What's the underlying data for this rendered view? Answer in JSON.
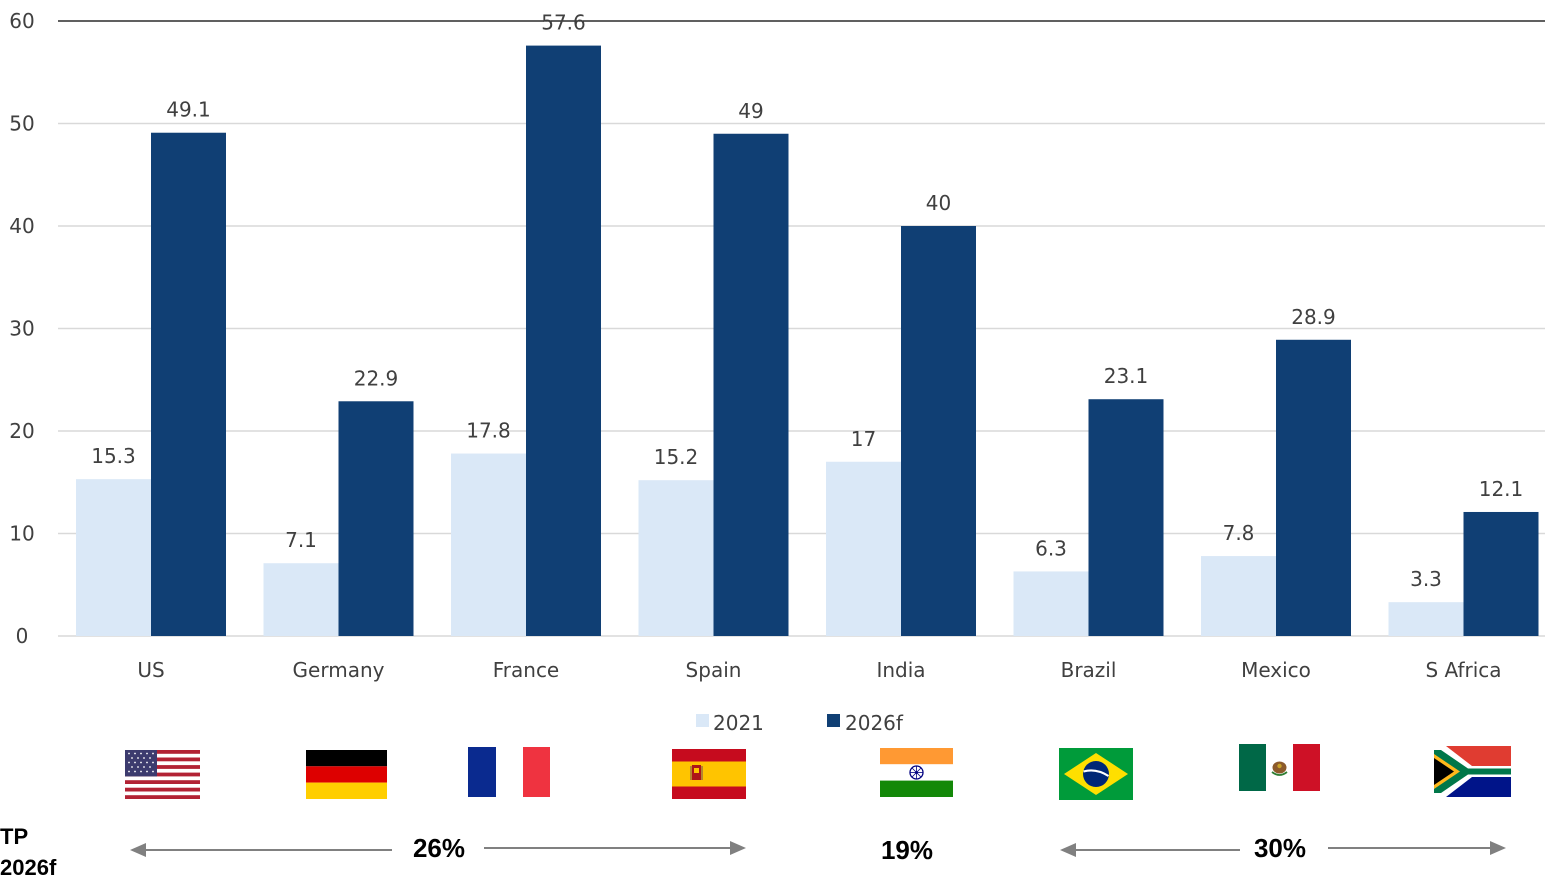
{
  "chart_data": {
    "type": "bar",
    "title": "",
    "xlabel": "",
    "ylabel": "",
    "ylim": [
      0,
      60
    ],
    "yticks": [
      0,
      10,
      20,
      30,
      40,
      50,
      60
    ],
    "grid": true,
    "legend_position": "bottom-center",
    "categories": [
      "US",
      "Germany",
      "France",
      "Spain",
      "India",
      "Brazil",
      "Mexico",
      "S Africa"
    ],
    "series": [
      {
        "name": "2021",
        "color": "#dae8f7",
        "values": [
          15.3,
          7.1,
          17.8,
          15.2,
          17,
          6.3,
          7.8,
          3.3
        ]
      },
      {
        "name": "2026f",
        "color": "#103f74",
        "values": [
          49.1,
          22.9,
          57.6,
          49,
          40,
          23.1,
          28.9,
          12.1
        ]
      }
    ],
    "data_labels": {
      "2021": [
        "15.3",
        "7.1",
        "17.8",
        "15.2",
        "17",
        "6.3",
        "7.8",
        "3.3"
      ],
      "2026f": [
        "49.1",
        "22.9",
        "57.6",
        "49",
        "40",
        "23.1",
        "28.9",
        "12.1"
      ]
    },
    "flags": [
      "us-flag",
      "germany-flag",
      "france-flag",
      "spain-flag",
      "india-flag",
      "brazil-flag",
      "mexico-flag",
      "south-africa-flag"
    ],
    "cagr_groups": [
      {
        "label": "26%",
        "categories": [
          "US",
          "Germany",
          "France",
          "Spain"
        ]
      },
      {
        "label": "19%",
        "categories": [
          "India"
        ]
      },
      {
        "label": "30%",
        "categories": [
          "Brazil",
          "Mexico",
          "S Africa"
        ]
      }
    ],
    "side_label": [
      "TP",
      "2026f"
    ]
  }
}
